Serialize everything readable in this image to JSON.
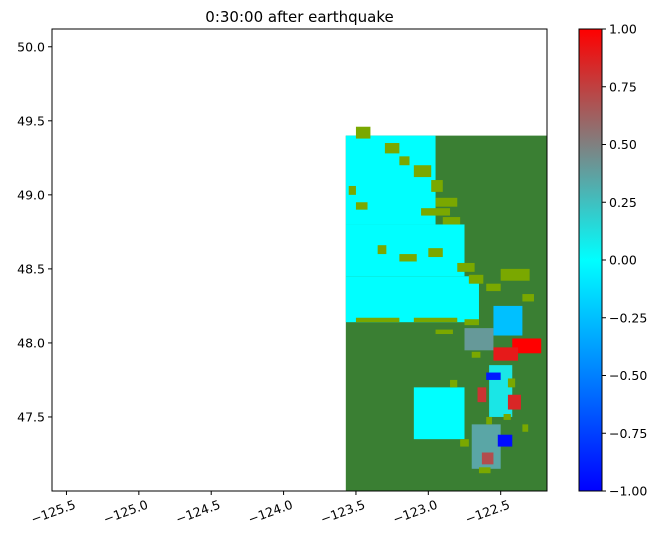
{
  "chart_data": {
    "type": "heatmap",
    "title": "0:30:00 after earthquake",
    "xlabel": "",
    "ylabel": "",
    "xlim": [
      -125.6,
      -122.18
    ],
    "ylim": [
      47.0,
      50.12
    ],
    "x_ticks": [
      {
        "value": -125.5,
        "label": "−125.5"
      },
      {
        "value": -125.0,
        "label": "−125.0"
      },
      {
        "value": -124.5,
        "label": "−124.5"
      },
      {
        "value": -124.0,
        "label": "−124.0"
      },
      {
        "value": -123.5,
        "label": "−123.5"
      },
      {
        "value": -123.0,
        "label": "−123.0"
      },
      {
        "value": -122.5,
        "label": "−122.5"
      }
    ],
    "y_ticks": [
      {
        "value": 47.5,
        "label": "47.5"
      },
      {
        "value": 48.0,
        "label": "48.0"
      },
      {
        "value": 48.5,
        "label": "48.5"
      },
      {
        "value": 49.0,
        "label": "49.0"
      },
      {
        "value": 49.5,
        "label": "49.5"
      },
      {
        "value": 50.0,
        "label": "50.0"
      }
    ],
    "data_extent": {
      "lon": [
        -123.57,
        -122.18
      ],
      "lat": [
        47.0,
        49.4
      ]
    },
    "colorbar": {
      "range": [
        -1.0,
        1.0
      ],
      "colormap": [
        {
          "value": -1.0,
          "color": "#0000ff"
        },
        {
          "value": -0.5,
          "color": "#0080ff"
        },
        {
          "value": 0.0,
          "color": "#00ffff"
        },
        {
          "value": 0.5,
          "color": "#808080"
        },
        {
          "value": 1.0,
          "color": "#ff0000"
        }
      ],
      "ticks": [
        {
          "value": 1.0,
          "label": "1.00"
        },
        {
          "value": 0.75,
          "label": "0.75"
        },
        {
          "value": 0.5,
          "label": "0.50"
        },
        {
          "value": 0.25,
          "label": "0.25"
        },
        {
          "value": 0.0,
          "label": "0.00"
        },
        {
          "value": -0.25,
          "label": "−0.25"
        },
        {
          "value": -0.5,
          "label": "−0.50"
        },
        {
          "value": -0.75,
          "label": "−0.75"
        },
        {
          "value": -1.0,
          "label": "−1.00"
        }
      ]
    },
    "land_colors": {
      "land": "#3a7f33",
      "shoreline": "#7aa800"
    },
    "water_regions": [
      {
        "region": "strait-north",
        "lon": [
          -123.57,
          -122.95
        ],
        "lat": [
          48.8,
          49.4
        ],
        "value": 0.0
      },
      {
        "region": "strait-mid",
        "lon": [
          -123.57,
          -122.75
        ],
        "lat": [
          48.45,
          48.8
        ],
        "value": 0.0
      },
      {
        "region": "strait-south",
        "lon": [
          -123.57,
          -122.65
        ],
        "lat": [
          48.14,
          48.45
        ],
        "value": 0.0
      },
      {
        "region": "north-sound",
        "lon": [
          -122.55,
          -122.35
        ],
        "lat": [
          48.05,
          48.25
        ],
        "value": -0.25
      },
      {
        "region": "admiralty",
        "lon": [
          -122.75,
          -122.55
        ],
        "lat": [
          47.95,
          48.1
        ],
        "value": 0.4
      },
      {
        "region": "puget-mid",
        "lon": [
          -122.58,
          -122.42
        ],
        "lat": [
          47.5,
          47.85
        ],
        "value": 0.1
      },
      {
        "region": "puget-south",
        "lon": [
          -122.7,
          -122.5
        ],
        "lat": [
          47.15,
          47.45
        ],
        "value": 0.35
      },
      {
        "region": "hood-canal",
        "lon": [
          -123.1,
          -122.75
        ],
        "lat": [
          47.35,
          47.7
        ],
        "value": 0.0
      },
      {
        "region": "everett",
        "lon": [
          -122.42,
          -122.22
        ],
        "lat": [
          47.93,
          48.03
        ],
        "value": 1.0
      },
      {
        "region": "possession",
        "lon": [
          -122.55,
          -122.38
        ],
        "lat": [
          47.88,
          47.97
        ],
        "value": 0.9
      },
      {
        "region": "elliott-bay",
        "lon": [
          -122.45,
          -122.36
        ],
        "lat": [
          47.55,
          47.65
        ],
        "value": 0.85
      },
      {
        "region": "tacoma",
        "lon": [
          -122.63,
          -122.55
        ],
        "lat": [
          47.18,
          47.26
        ],
        "value": 0.7
      },
      {
        "region": "colvos",
        "lon": [
          -122.52,
          -122.42
        ],
        "lat": [
          47.3,
          47.38
        ],
        "value": -0.95
      },
      {
        "region": "edmonds",
        "lon": [
          -122.6,
          -122.5
        ],
        "lat": [
          47.75,
          47.8
        ],
        "value": -0.9
      },
      {
        "region": "kingston",
        "lon": [
          -122.66,
          -122.6
        ],
        "lat": [
          47.6,
          47.7
        ],
        "value": 0.8
      }
    ]
  }
}
